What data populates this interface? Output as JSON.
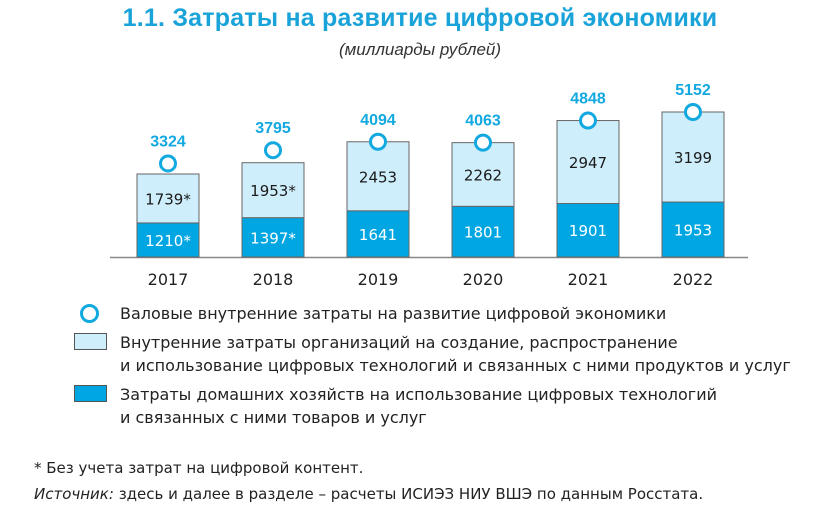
{
  "title": "1.1. Затраты на развитие цифровой экономики",
  "subtitle": "(миллиарды рублей)",
  "chart_data": {
    "type": "bar",
    "stacked": true,
    "categories": [
      "2017",
      "2018",
      "2019",
      "2020",
      "2021",
      "2022"
    ],
    "series": [
      {
        "name": "Затраты домашних хозяйств на использование цифровых технологий и связанных с ними товаров и услуг",
        "values": [
          1210,
          1397,
          1641,
          1801,
          1901,
          1953
        ],
        "labels": [
          "1210*",
          "1397*",
          "1641",
          "1801",
          "1901",
          "1953"
        ],
        "color": "#00a6e2"
      },
      {
        "name": "Внутренние затраты организаций на создание, распространение и использование цифровых технологий и связанных с ними продуктов и услуг",
        "values": [
          1739,
          1953,
          2453,
          2262,
          2947,
          3199
        ],
        "labels": [
          "1739*",
          "1953*",
          "2453",
          "2262",
          "2947",
          "3199"
        ],
        "color": "#cfeefb"
      }
    ],
    "totals": {
      "name": "Валовые внутренние затраты на развитие цифровой экономики",
      "values": [
        3324,
        3795,
        4094,
        4063,
        4848,
        5152
      ],
      "color": "#12a8e0"
    },
    "ylim": [
      0,
      5152
    ],
    "grid": false,
    "legend": "bottom"
  },
  "legend": {
    "item1": "Валовые внутренние затраты на развитие цифровой экономики",
    "item2_line1": "Внутренние затраты организаций на создание, распространение",
    "item2_line2": "и использование цифровых технологий и связанных с ними продуктов и услуг",
    "item3_line1": "Затраты домашних хозяйств на использование цифровых технологий",
    "item3_line2": "и связанных с ними товаров и услуг"
  },
  "footnote": "* Без учета затрат на цифровой контент.",
  "source_label": "Источник:",
  "source_text": " здесь и далее в разделе – расчеты ИСИЭЗ НИУ ВШЭ по данным Росстата."
}
